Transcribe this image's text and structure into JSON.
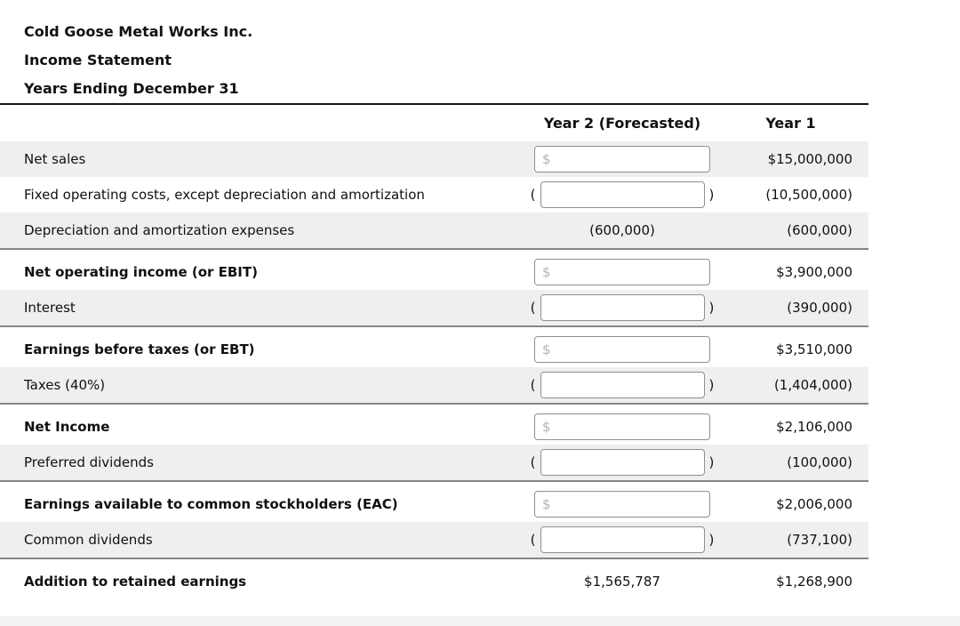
{
  "title": {
    "company": "Cold Goose Metal Works Inc.",
    "statement": "Income Statement",
    "period": "Years Ending December 31"
  },
  "table": {
    "columns": {
      "year2": "Year 2 (Forecasted)",
      "year1": "Year 1"
    },
    "input_prefix": "$",
    "paren_open": "(",
    "paren_close": ")",
    "input_value": "",
    "rows": [
      {
        "label": "Net sales",
        "bold": false,
        "shaded": true,
        "year2_type": "dollar_input",
        "year2_text": "",
        "year1": "$15,000,000",
        "divider_after": false
      },
      {
        "label": "Fixed operating costs, except depreciation and amortization",
        "bold": false,
        "shaded": false,
        "year2_type": "paren_input",
        "year2_text": "",
        "year1": "(10,500,000)",
        "divider_after": false
      },
      {
        "label": "Depreciation and amortization expenses",
        "bold": false,
        "shaded": true,
        "year2_type": "text",
        "year2_text": "(600,000)",
        "year1": "(600,000)",
        "divider_after": true
      },
      {
        "label": "Net operating income (or EBIT)",
        "bold": true,
        "shaded": false,
        "year2_type": "dollar_input",
        "year2_text": "",
        "year1": "$3,900,000",
        "divider_after": false
      },
      {
        "label": "Interest",
        "bold": false,
        "shaded": true,
        "year2_type": "paren_input",
        "year2_text": "",
        "year1": "(390,000)",
        "divider_after": true
      },
      {
        "label": "Earnings before taxes (or EBT)",
        "bold": true,
        "shaded": false,
        "year2_type": "dollar_input",
        "year2_text": "",
        "year1": "$3,510,000",
        "divider_after": false
      },
      {
        "label": "Taxes (40%)",
        "bold": false,
        "shaded": true,
        "year2_type": "paren_input",
        "year2_text": "",
        "year1": "(1,404,000)",
        "divider_after": true
      },
      {
        "label": "Net Income",
        "bold": true,
        "shaded": false,
        "year2_type": "dollar_input",
        "year2_text": "",
        "year1": "$2,106,000",
        "divider_after": false
      },
      {
        "label": "Preferred dividends",
        "bold": false,
        "shaded": true,
        "year2_type": "paren_input",
        "year2_text": "",
        "year1": "(100,000)",
        "divider_after": true
      },
      {
        "label": "Earnings available to common stockholders (EAC)",
        "bold": true,
        "shaded": false,
        "year2_type": "dollar_input",
        "year2_text": "",
        "year1": "$2,006,000",
        "divider_after": false
      },
      {
        "label": "Common dividends",
        "bold": false,
        "shaded": true,
        "year2_type": "paren_input",
        "year2_text": "",
        "year1": "(737,100)",
        "divider_after": true
      },
      {
        "label": "Addition to retained earnings",
        "bold": true,
        "shaded": false,
        "year2_type": "text",
        "year2_text": "$1,565,787",
        "year1": "$1,268,900",
        "divider_after": false
      }
    ]
  },
  "colors": {
    "shaded_row": "#efefef",
    "section_divider": "#858585",
    "header_rule": "#141414",
    "input_border": "#8f8f8f",
    "input_prefix_gray": "#b3b3b3",
    "bottom_strip": "#f2f2f2"
  }
}
